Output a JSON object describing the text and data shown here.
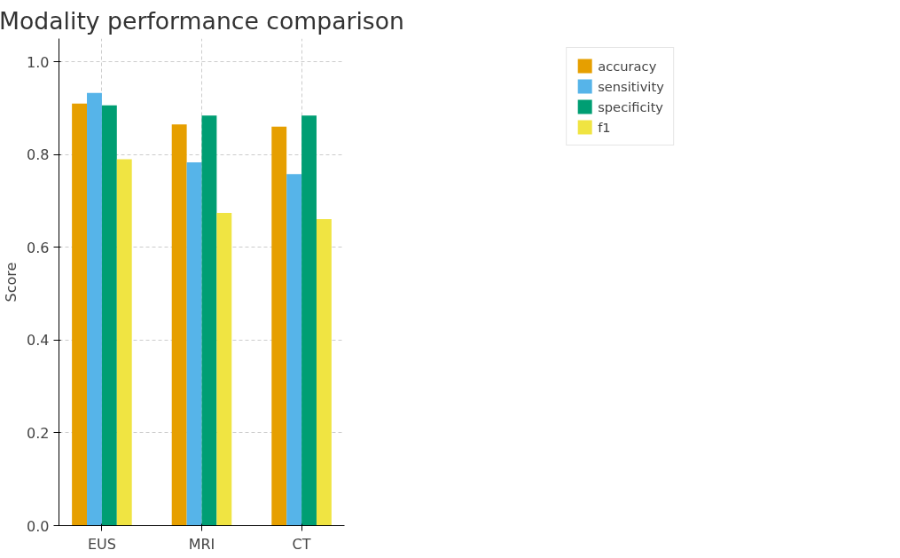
{
  "chart_data": {
    "type": "bar",
    "title": "Modality performance comparison",
    "ylabel": "Score",
    "categories": [
      "EUS",
      "MRI",
      "CT"
    ],
    "series": [
      {
        "name": "accuracy",
        "color": "#e69f00",
        "values": [
          0.91,
          0.865,
          0.86
        ]
      },
      {
        "name": "sensitivity",
        "color": "#56b4e9",
        "values": [
          0.933,
          0.783,
          0.758
        ]
      },
      {
        "name": "specificity",
        "color": "#009e73",
        "values": [
          0.906,
          0.884,
          0.884
        ]
      },
      {
        "name": "f1",
        "color": "#f0e442",
        "values": [
          0.79,
          0.674,
          0.661
        ]
      }
    ],
    "ylim": [
      0,
      1.05
    ],
    "yticks": [
      {
        "value": 0,
        "label": "0.0"
      },
      {
        "value": 0.2,
        "label": "0.2"
      },
      {
        "value": 0.4,
        "label": "0.4"
      },
      {
        "value": 0.6,
        "label": "0.6"
      },
      {
        "value": 0.8,
        "label": "0.8"
      },
      {
        "value": 1.0,
        "label": "1.0"
      }
    ],
    "grid": true,
    "legend": "right"
  }
}
